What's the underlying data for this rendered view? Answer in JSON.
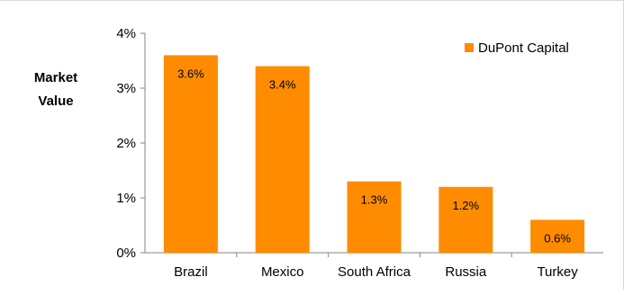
{
  "chart_data": {
    "type": "bar",
    "categories": [
      "Brazil",
      "Mexico",
      "South Africa",
      "Russia",
      "Turkey"
    ],
    "series": [
      {
        "name": "DuPont Capital",
        "values": [
          3.6,
          3.4,
          1.3,
          1.2,
          0.6
        ],
        "data_labels": [
          "3.6%",
          "3.4%",
          "1.3%",
          "1.2%",
          "0.6%"
        ],
        "color": "#FF8C00"
      }
    ],
    "ylabel_lines": [
      "Market",
      "Value"
    ],
    "ylim": [
      0,
      4
    ],
    "yticks": [
      0,
      1,
      2,
      3,
      4
    ],
    "ytick_labels": [
      "0%",
      "1%",
      "2%",
      "3%",
      "4%"
    ],
    "grid": false,
    "legend_position": "top-right"
  }
}
